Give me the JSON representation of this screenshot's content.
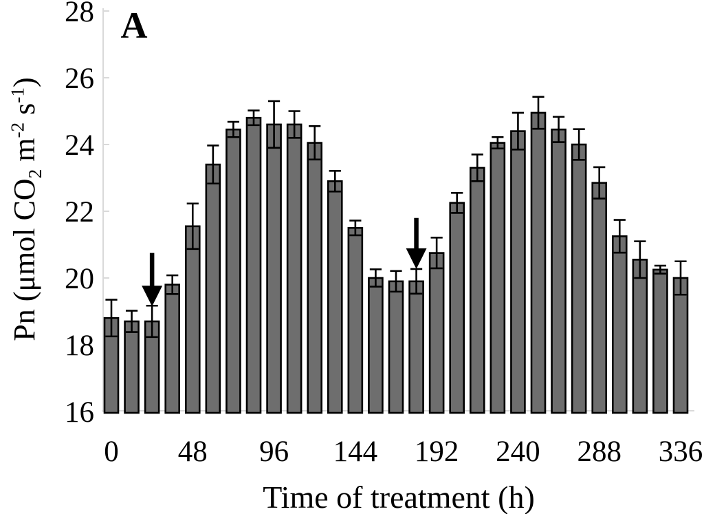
{
  "panel_label": "A",
  "colors": {
    "bar_fill": "#6e6e6e",
    "bar_stroke": "#000000",
    "error_bar": "#000000",
    "axis_line": "#d9d9d9",
    "arrow": "#000000",
    "text": "#000000"
  },
  "chart_data": {
    "type": "bar",
    "title": "",
    "xlabel": "Time of treatment (h)",
    "ylabel_plain": "Pn (μmol CO2 m-2 s-1)",
    "ylabel_segments": [
      {
        "text": "Pn (μmol CO"
      },
      {
        "sub": "2"
      },
      {
        "text": " m"
      },
      {
        "sup": "-2"
      },
      {
        "text": " s"
      },
      {
        "sup": "-1"
      },
      {
        "text": ")"
      }
    ],
    "x": [
      0,
      12,
      24,
      36,
      48,
      60,
      72,
      84,
      96,
      108,
      120,
      132,
      144,
      156,
      168,
      180,
      192,
      204,
      216,
      228,
      240,
      252,
      264,
      276,
      288,
      300,
      312,
      324,
      336
    ],
    "values": [
      18.8,
      18.7,
      18.7,
      19.8,
      21.55,
      23.4,
      24.45,
      24.8,
      24.6,
      24.6,
      24.05,
      22.9,
      21.5,
      20.0,
      19.9,
      19.9,
      20.75,
      22.25,
      23.3,
      24.05,
      24.4,
      24.95,
      24.45,
      24.0,
      22.85,
      21.25,
      20.55,
      20.25,
      20.0
    ],
    "errors": [
      0.55,
      0.32,
      0.47,
      0.28,
      0.68,
      0.57,
      0.23,
      0.22,
      0.7,
      0.4,
      0.5,
      0.31,
      0.22,
      0.26,
      0.31,
      0.37,
      0.46,
      0.3,
      0.4,
      0.17,
      0.55,
      0.48,
      0.38,
      0.46,
      0.47,
      0.49,
      0.55,
      0.12,
      0.5
    ],
    "x_tick_labels": [
      0,
      48,
      96,
      144,
      192,
      240,
      288,
      336
    ],
    "y_ticks": [
      16,
      18,
      20,
      22,
      24,
      26,
      28
    ],
    "ylim": [
      16,
      28
    ],
    "grid": "off",
    "legend": "none",
    "annotations": {
      "arrows": [
        {
          "t": 24,
          "tail_value": 20.75,
          "tip_value": 19.15
        },
        {
          "t": 180,
          "tail_value": 21.8,
          "tip_value": 20.27
        }
      ]
    }
  }
}
